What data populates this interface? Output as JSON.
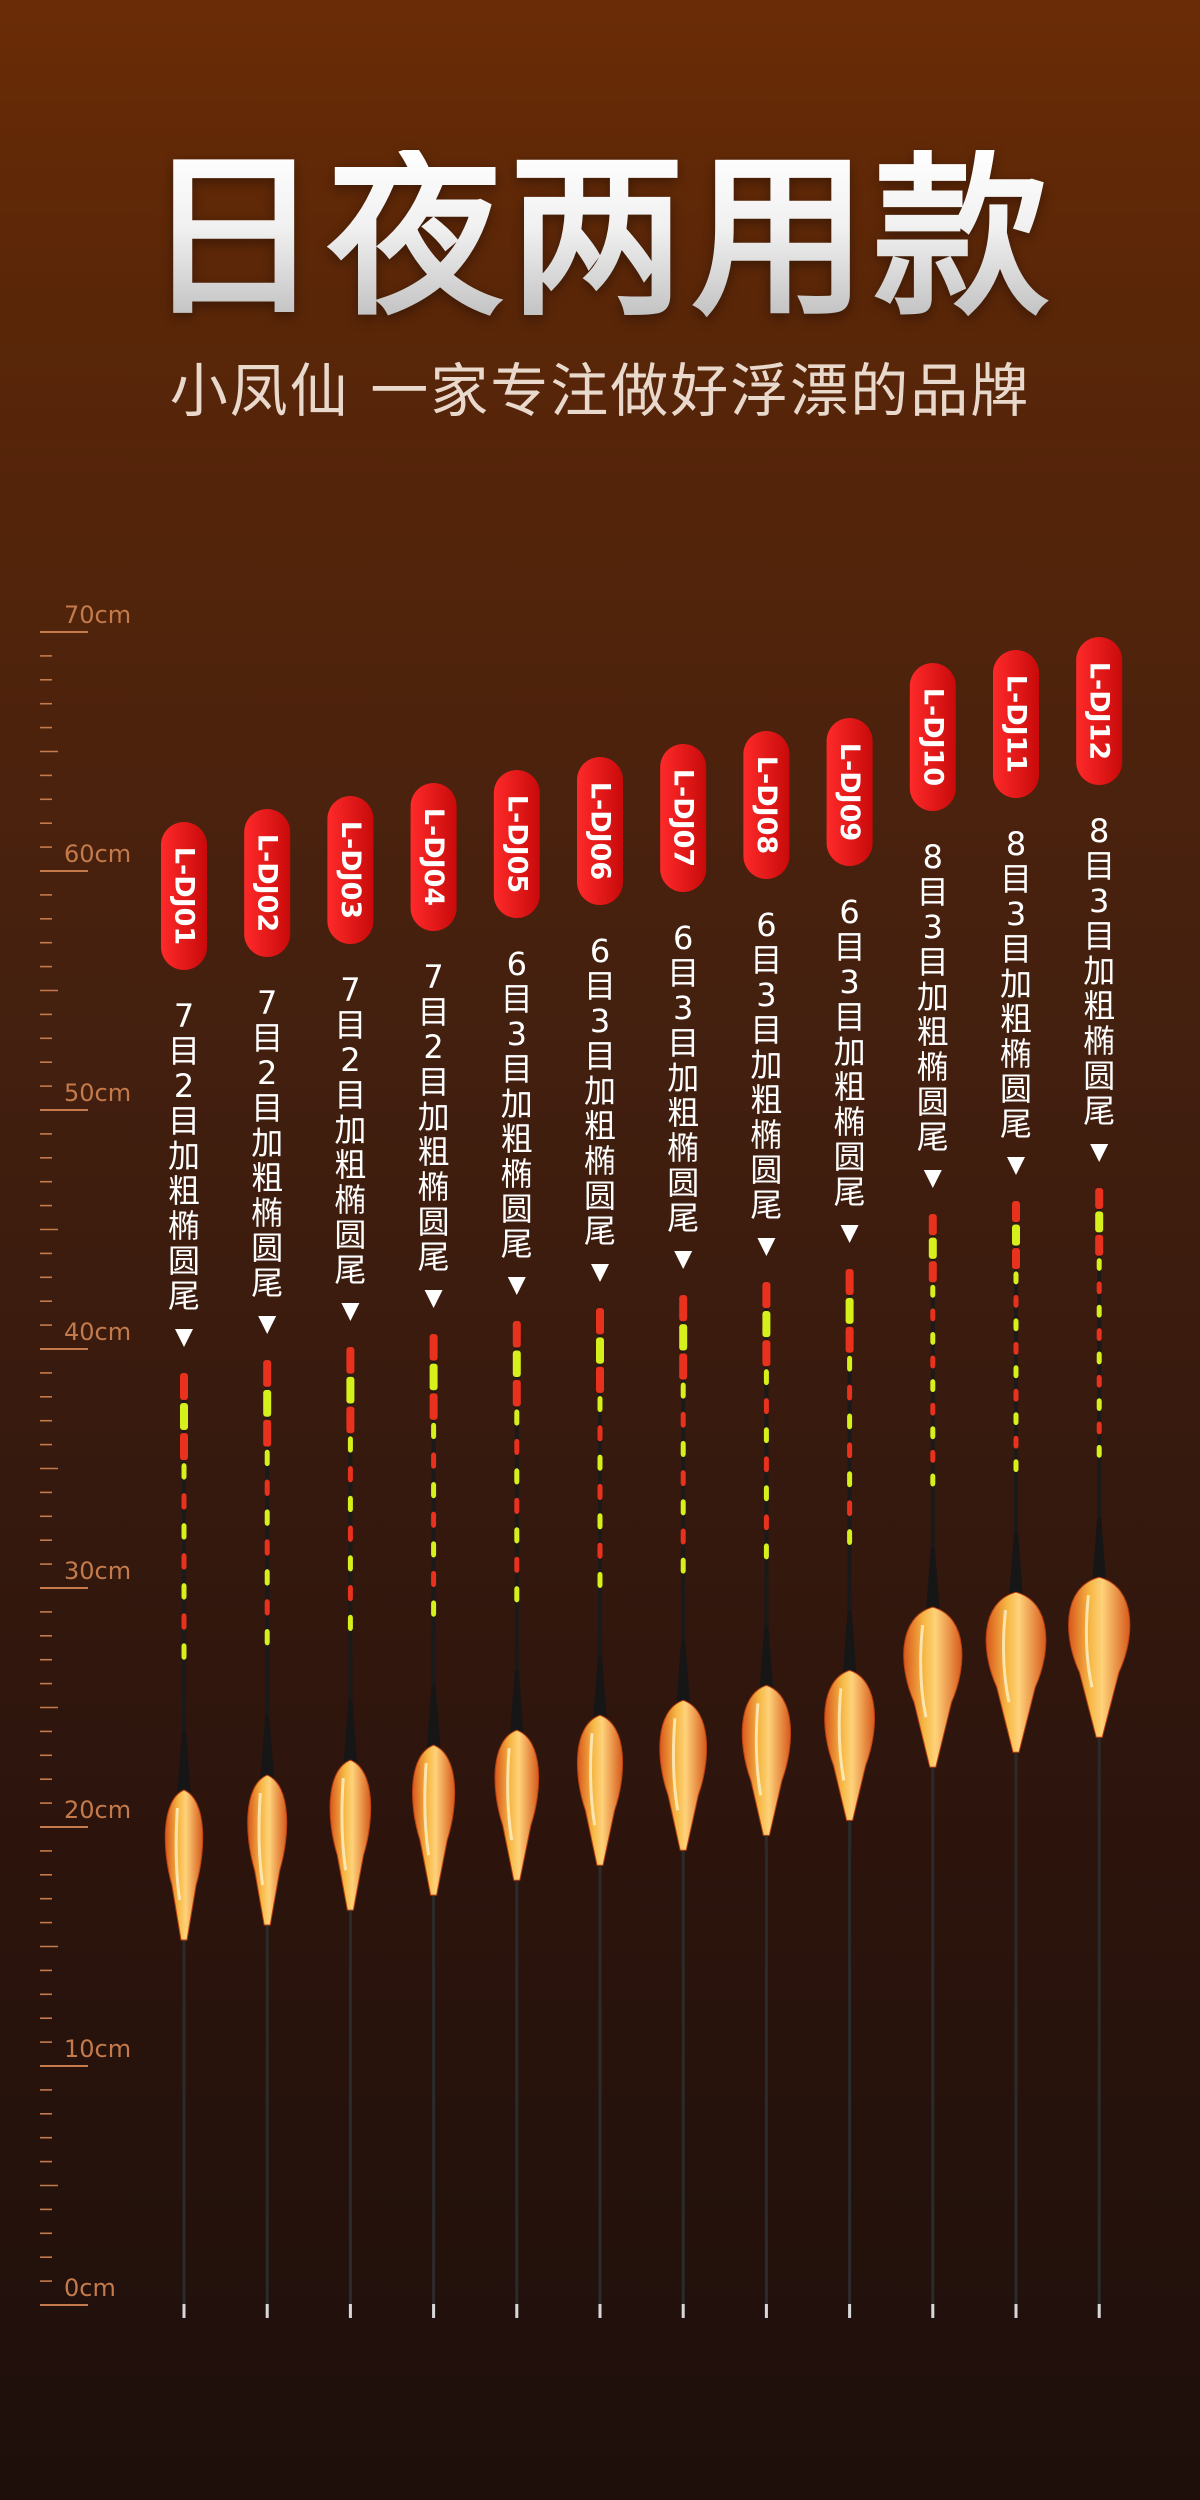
{
  "header": {
    "title": "日夜两用款",
    "subtitle": "小凤仙 一家专注做好浮漂的品牌"
  },
  "ruler": {
    "unit": "cm",
    "labels": [
      "0cm",
      "10cm",
      "20cm",
      "30cm",
      "40cm",
      "50cm",
      "60cm",
      "70cm"
    ],
    "max_cm": 70,
    "color": "#c47a4a"
  },
  "floats": [
    {
      "model": "L-DJ01",
      "spec": "7目2目加粗椭圆尾"
    },
    {
      "model": "L-DJ02",
      "spec": "7目2目加粗椭圆尾"
    },
    {
      "model": "L-DJ03",
      "spec": "7目2目加粗椭圆尾"
    },
    {
      "model": "L-DJ04",
      "spec": "7目2目加粗椭圆尾"
    },
    {
      "model": "L-DJ05",
      "spec": "6目3目加粗椭圆尾"
    },
    {
      "model": "L-DJ06",
      "spec": "6目3目加粗椭圆尾"
    },
    {
      "model": "L-DJ07",
      "spec": "6目3目加粗椭圆尾"
    },
    {
      "model": "L-DJ08",
      "spec": "6目3目加粗椭圆尾"
    },
    {
      "model": "L-DJ09",
      "spec": "6目3目加粗椭圆尾"
    },
    {
      "model": "L-DJ10",
      "spec": "8目3目加粗椭圆尾"
    },
    {
      "model": "L-DJ11",
      "spec": "8目3目加粗椭圆尾"
    },
    {
      "model": "L-DJ12",
      "spec": "8目3目加粗椭圆尾"
    }
  ],
  "colors": {
    "badge": "#e01414",
    "tip_red": "#e8321e",
    "tip_yellow": "#d6f01c",
    "body_gold": "#f2b13a",
    "body_orange": "#e55a1e"
  }
}
